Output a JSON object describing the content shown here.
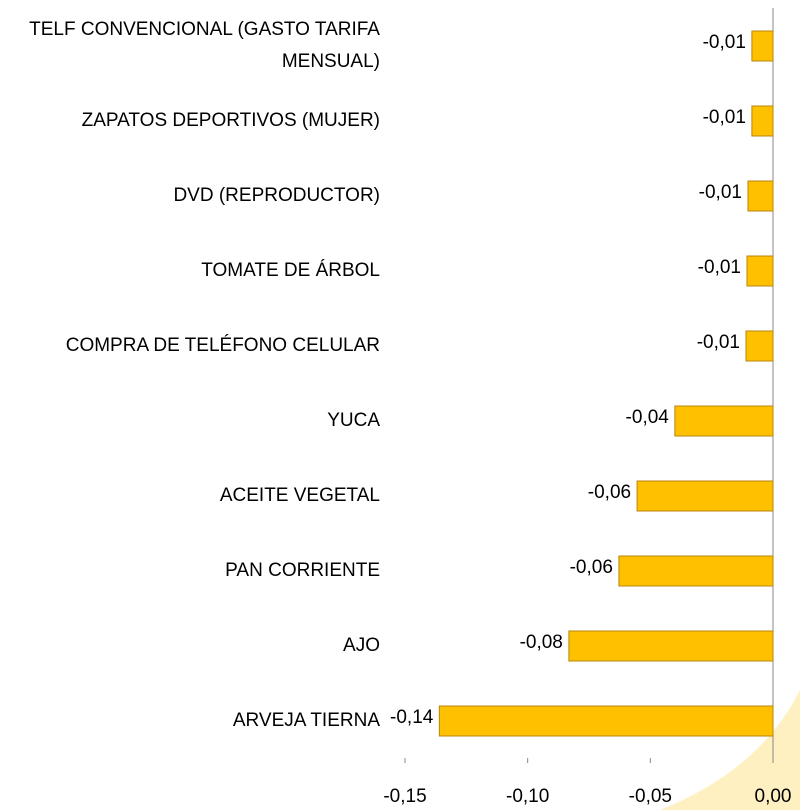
{
  "chart_data": {
    "type": "barh",
    "categories": [
      "TELF CONVENCIONAL (GASTO TARIFA MENSUAL)",
      "ZAPATOS DEPORTIVOS (MUJER)",
      "DVD (REPRODUCTOR)",
      "TOMATE DE ÁRBOL",
      "COMPRA DE TELÉFONO CELULAR",
      "YUCA",
      "ACEITE VEGETAL",
      "PAN CORRIENTE",
      "AJO",
      "ARVEJA TIERNA"
    ],
    "values": [
      -0.0086,
      -0.0086,
      -0.0102,
      -0.0106,
      -0.011,
      -0.04,
      -0.0554,
      -0.0628,
      -0.0832,
      -0.136
    ],
    "value_labels": [
      "-0,01",
      "-0,01",
      "-0,01",
      "-0,01",
      "-0,01",
      "-0,04",
      "-0,06",
      "-0,06",
      "-0,08",
      "-0,14"
    ],
    "color": "#ffc000",
    "xlim": [
      -0.15,
      0
    ],
    "xticks": [
      {
        "value": -0.15,
        "label": "-0,15"
      },
      {
        "value": -0.1,
        "label": "-0,10"
      },
      {
        "value": -0.05,
        "label": "-0,05"
      },
      {
        "value": 0,
        "label": "0,00"
      }
    ]
  }
}
